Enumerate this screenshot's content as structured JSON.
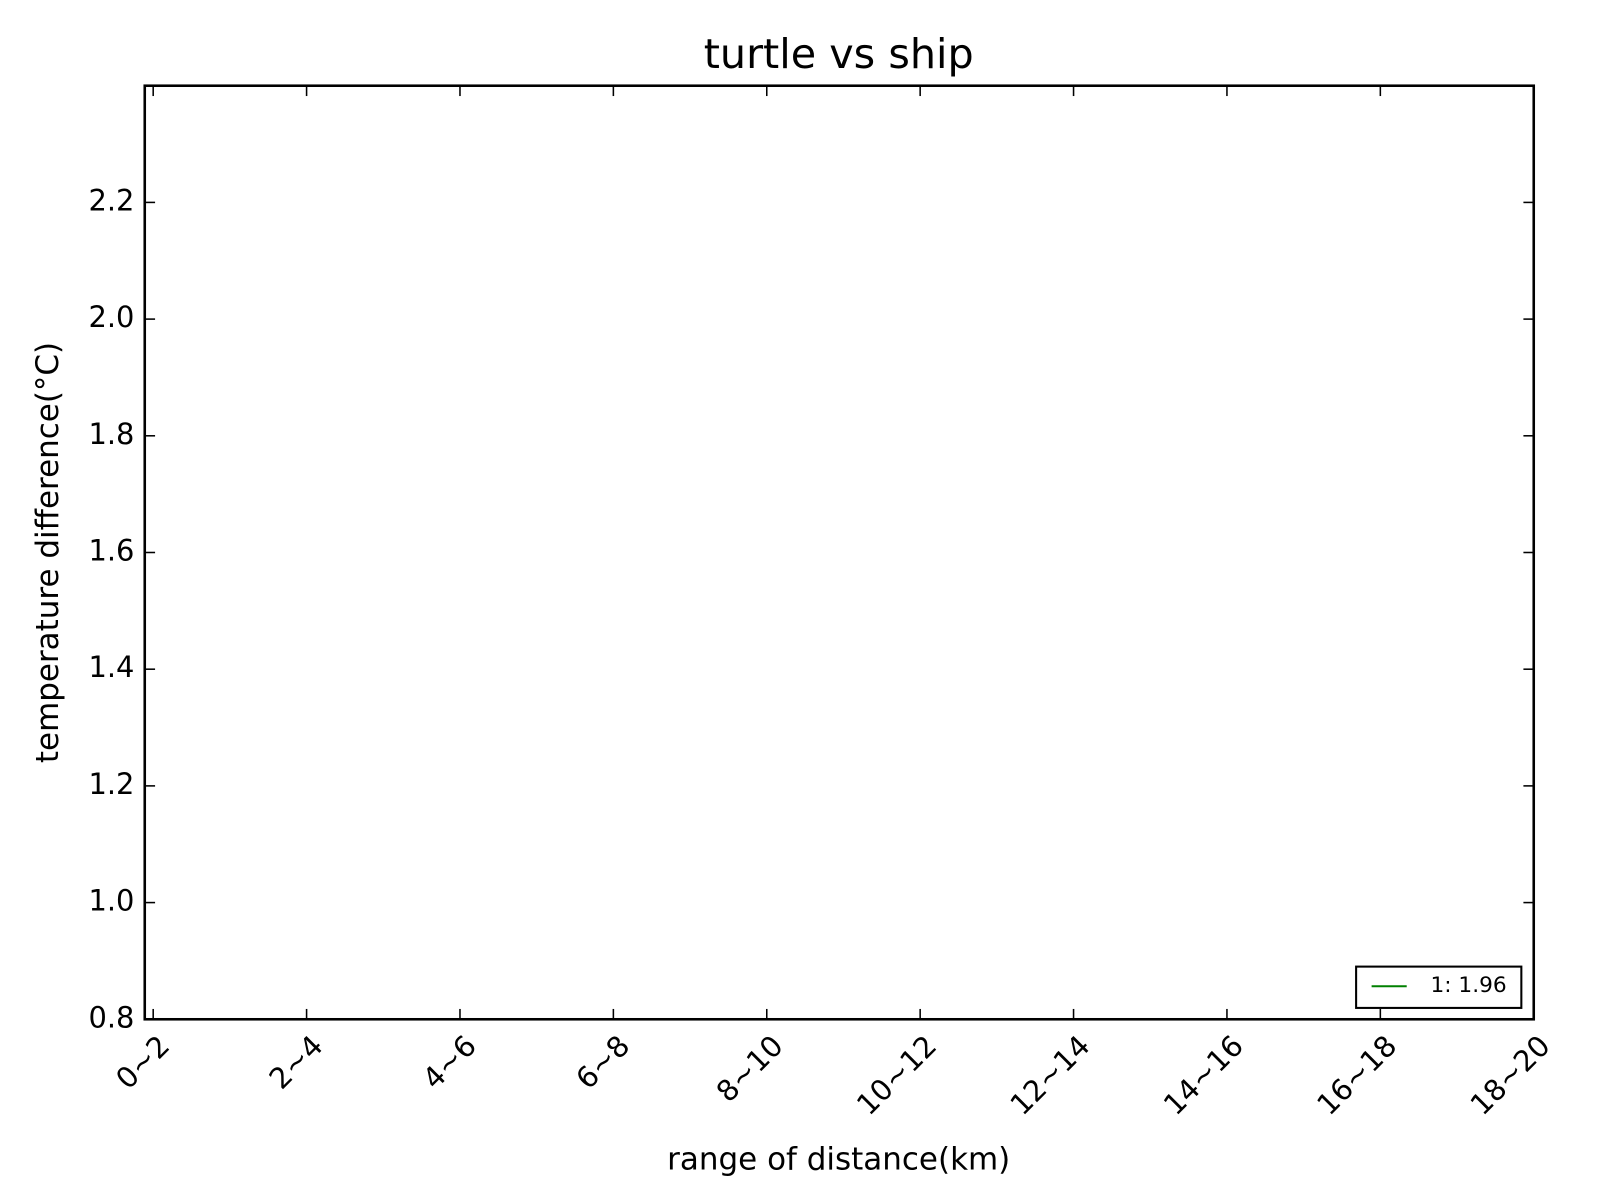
{
  "chart_data": {
    "type": "line",
    "title": "turtle vs ship",
    "xlabel": "range of distance(km)",
    "ylabel": "temperature difference(°C)",
    "categories": [
      "0~2",
      "2~4",
      "4~6",
      "6~8",
      "8~10",
      "10~12",
      "12~14",
      "14~16",
      "16~18",
      "18~20"
    ],
    "series": [
      {
        "name": "1: 1.96",
        "color": "#008000",
        "values": [
          null,
          null,
          null,
          null,
          null,
          null,
          null,
          null,
          null,
          null
        ]
      }
    ],
    "ylim": [
      0.8,
      2.4
    ],
    "yticks": [
      0.8,
      {
        "value": 1.0,
        "label": "1.0"
      },
      1.2,
      1.4,
      1.6,
      1.8,
      {
        "value": 2.0,
        "label": "2.0"
      },
      2.2
    ],
    "legend": "lower right",
    "grid": false
  }
}
